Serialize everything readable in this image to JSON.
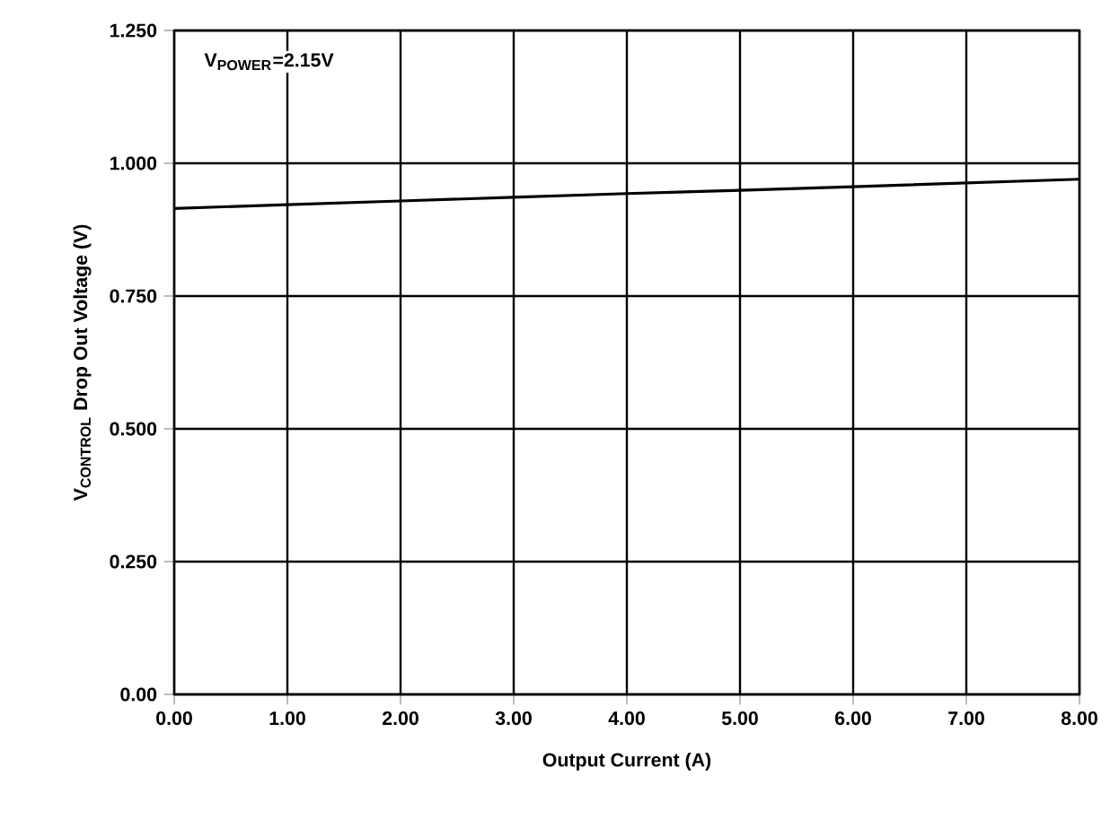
{
  "chart_data": {
    "type": "line",
    "xlabel": "Output Current (A)",
    "ylabel": "V$_{CONTROL}$ Drop Out Voltage (V)",
    "x": [
      0,
      1,
      2,
      3,
      4,
      5,
      6,
      7,
      8
    ],
    "series": [
      {
        "color": "#000000",
        "values": [
          0.915,
          0.922,
          0.929,
          0.936,
          0.943,
          0.949,
          0.956,
          0.963,
          0.97
        ]
      }
    ],
    "xlim": [
      0,
      8
    ],
    "ylim": [
      0,
      1.25
    ],
    "xticks": [
      {
        "value": 0,
        "label": "0.00"
      },
      {
        "value": 1,
        "label": "1.00"
      },
      {
        "value": 2,
        "label": "2.00"
      },
      {
        "value": 3,
        "label": "3.00"
      },
      {
        "value": 4,
        "label": "4.00"
      },
      {
        "value": 5,
        "label": "5.00"
      },
      {
        "value": 6,
        "label": "6.00"
      },
      {
        "value": 7,
        "label": "7.00"
      },
      {
        "value": 8,
        "label": "8.00"
      }
    ],
    "yticks": [
      {
        "value": 0,
        "label": "0.00"
      },
      {
        "value": 0.25,
        "label": "0.250"
      },
      {
        "value": 0.5,
        "label": "0.500"
      },
      {
        "value": 0.75,
        "label": "0.750"
      },
      {
        "value": 1,
        "label": "1.000"
      },
      {
        "value": 1.25,
        "label": "1.250"
      }
    ],
    "grid": true,
    "marker": "none",
    "line_style": "solid",
    "annotations": [
      "V$_{POWER}$=2.15V"
    ]
  }
}
